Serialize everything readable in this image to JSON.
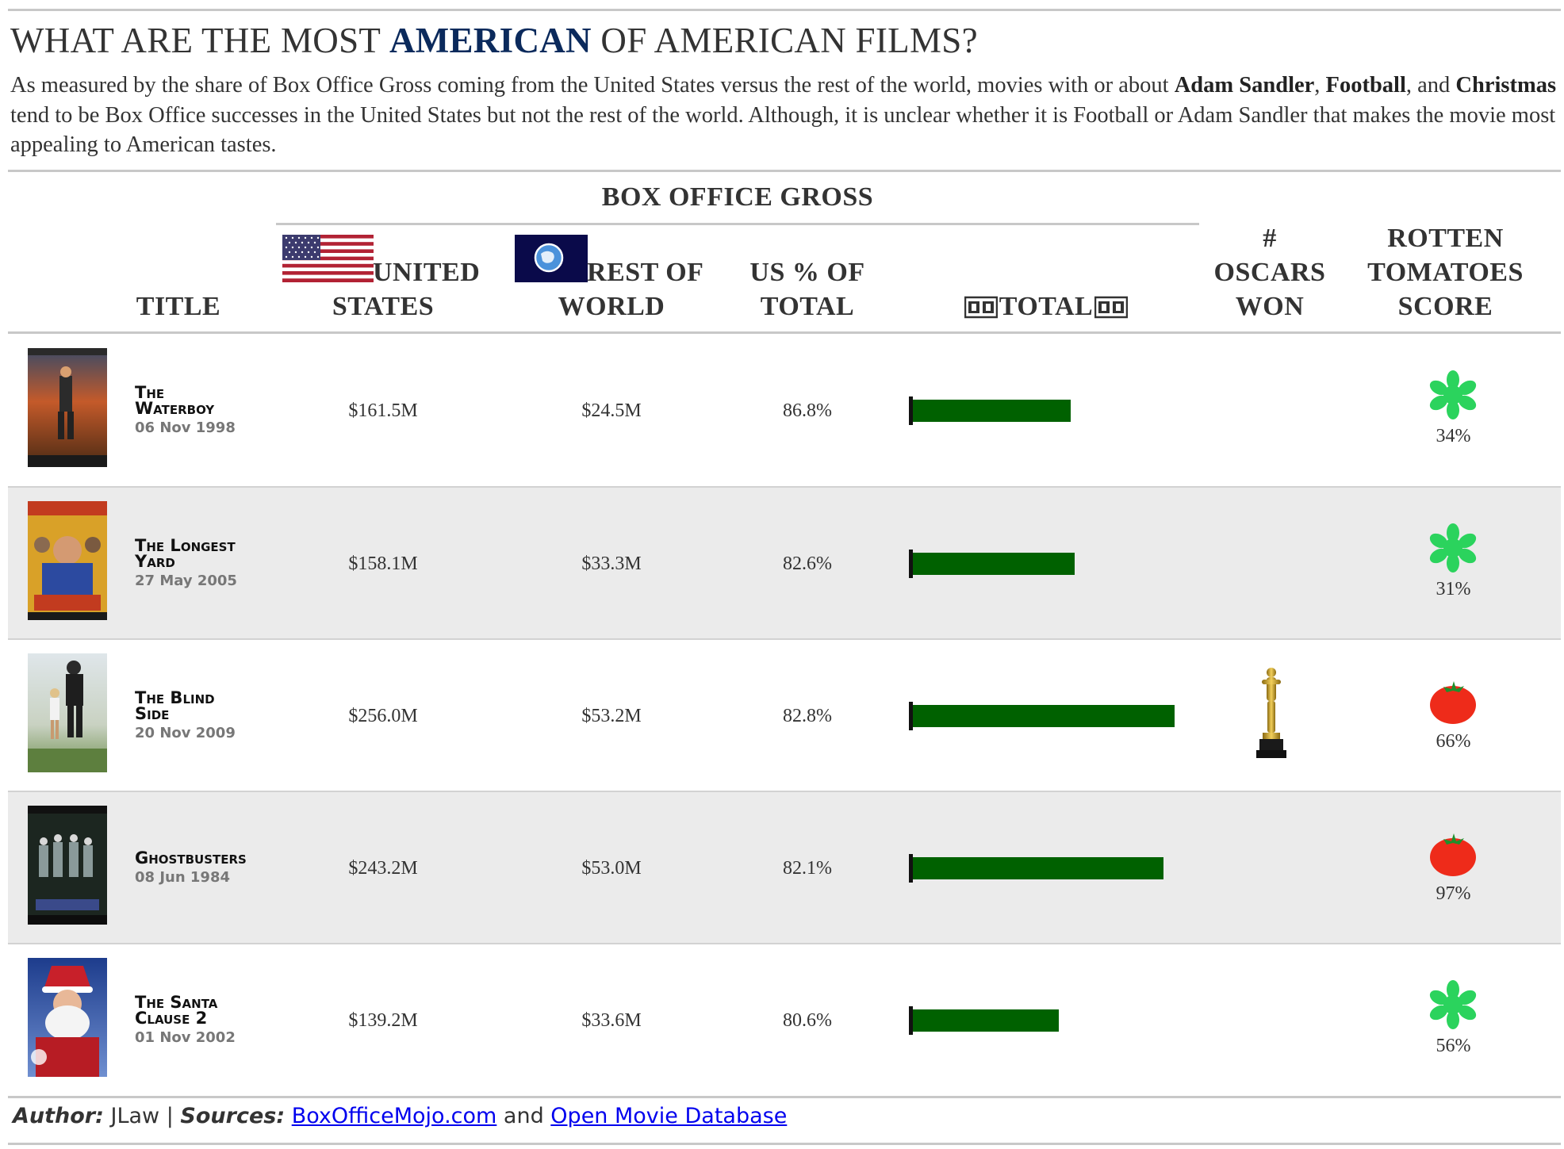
{
  "title": {
    "part1": "WHAT ARE THE MOST ",
    "highlight": "AMERICAN",
    "part2": " OF AMERICAN FILMS?"
  },
  "subtitle": {
    "t1": "As measured by the share of Box Office Gross coming from the United States versus the rest of the world, movies with or about ",
    "b1": "Adam Sandler",
    "t2": ", ",
    "b2": "Football",
    "t3": ", and ",
    "b3": "Christmas",
    "t4": " tend to be Box Office successes in the United States but not the rest of the world. Although, it is unclear whether it is Football or Adam Sandler that makes the movie most appealing to American tastes."
  },
  "headers": {
    "group": "BOX OFFICE GROSS",
    "title": "TITLE",
    "us_1": "UNITED",
    "us_2": "STATES",
    "row_1": "REST OF",
    "row_2": "WORLD",
    "pct_1": "US % OF",
    "pct_2": "TOTAL",
    "total": "TOTAL",
    "oscars_1": "#",
    "oscars_2": "OSCARS",
    "oscars_3": "WON",
    "rt_1": "ROTTEN",
    "rt_2": "TOMATOES",
    "rt_3": "SCORE",
    "film_icon": "film-frames-icon",
    "us_flag_icon": "us-flag-icon",
    "world_flag_icon": "world-flag-icon"
  },
  "colors": {
    "title_highlight": "#0b2a5c",
    "bar": "#006100",
    "row_alt": "#ebebeb",
    "splat": "#2bd35d",
    "tomato": "#ee2b1a",
    "link": "#0000ee"
  },
  "movies": [
    {
      "title_1": "The",
      "title_2": "Waterboy",
      "date": "06 Nov 1998",
      "us": "$161.5M",
      "world": "$24.5M",
      "pct": "86.8%",
      "total_m": 186.0,
      "oscars": 0,
      "rt": "34%",
      "rt_icon": "rotten-splat-icon"
    },
    {
      "title_1": "The Longest",
      "title_2": "Yard",
      "date": "27 May 2005",
      "us": "$158.1M",
      "world": "$33.3M",
      "pct": "82.6%",
      "total_m": 191.4,
      "oscars": 0,
      "rt": "31%",
      "rt_icon": "rotten-splat-icon"
    },
    {
      "title_1": "The Blind",
      "title_2": "Side",
      "date": "20 Nov 2009",
      "us": "$256.0M",
      "world": "$53.2M",
      "pct": "82.8%",
      "total_m": 309.2,
      "oscars": 1,
      "rt": "66%",
      "rt_icon": "fresh-tomato-icon"
    },
    {
      "title_1": "Ghostbusters",
      "title_2": "",
      "date": "08 Jun 1984",
      "us": "$243.2M",
      "world": "$53.0M",
      "pct": "82.1%",
      "total_m": 296.2,
      "oscars": 0,
      "rt": "97%",
      "rt_icon": "fresh-tomato-icon"
    },
    {
      "title_1": "The Santa",
      "title_2": "Clause 2",
      "date": "01 Nov 2002",
      "us": "$139.2M",
      "world": "$33.6M",
      "pct": "80.6%",
      "total_m": 172.8,
      "oscars": 0,
      "rt": "56%",
      "rt_icon": "rotten-splat-icon"
    }
  ],
  "footer": {
    "author_label": "Author:",
    "author": " JLaw | ",
    "sources_label": "Sources:",
    "link1": "BoxOfficeMojo.com",
    "and": " and ",
    "link2": "Open Movie Database"
  }
}
